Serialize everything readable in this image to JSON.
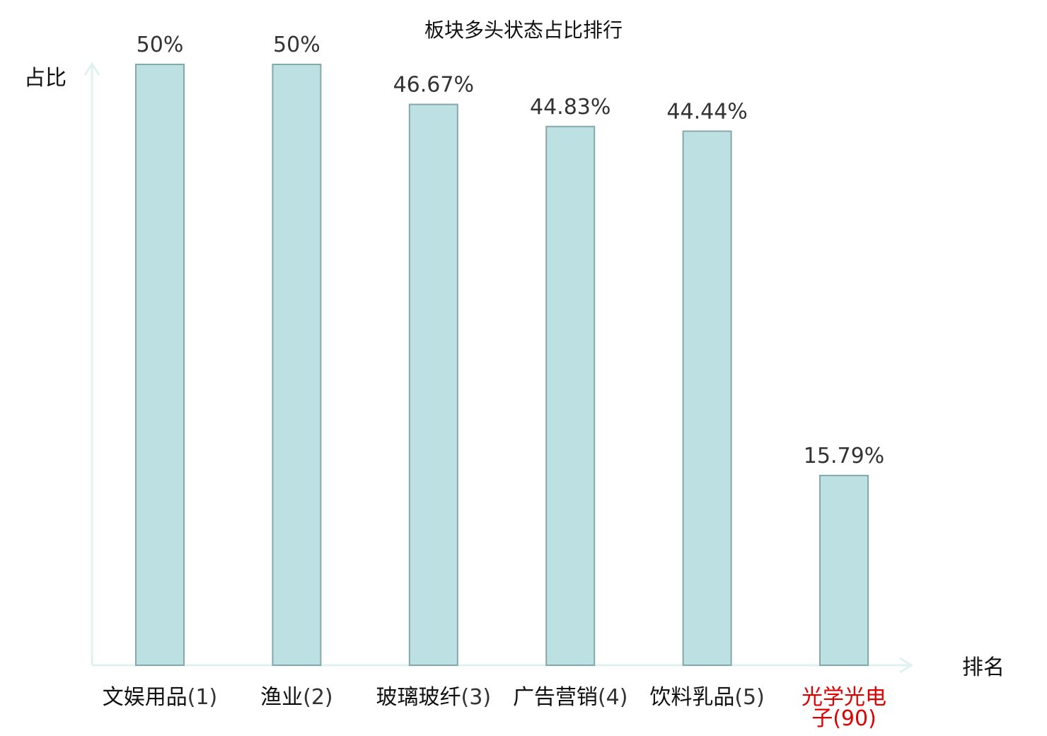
{
  "chart_data": {
    "type": "bar",
    "title": "板块多头状态占比排行",
    "ylabel": "占比",
    "xlabel": "排名",
    "categories": [
      "文娱用品",
      "渔业",
      "玻璃玻纤",
      "广告营销",
      "饮料乳品",
      "光学光电子"
    ],
    "ranks": [
      "(1)",
      "(2)",
      "(3)",
      "(4)",
      "(5)",
      "(90)"
    ],
    "values": [
      50,
      50,
      46.67,
      44.83,
      44.44,
      15.79
    ],
    "value_labels": [
      "50%",
      "50%",
      "46.67%",
      "44.83%",
      "44.44%",
      "15.79%"
    ],
    "ylim": [
      0,
      50
    ],
    "highlight_index": 5,
    "grid": false,
    "colors": {
      "bar_fill": "#bde0e3",
      "bar_stroke": "#85a8ab",
      "axis": "#e0f2ef",
      "text": "#111111",
      "value_text": "#333333",
      "highlight": "#e00000"
    }
  }
}
